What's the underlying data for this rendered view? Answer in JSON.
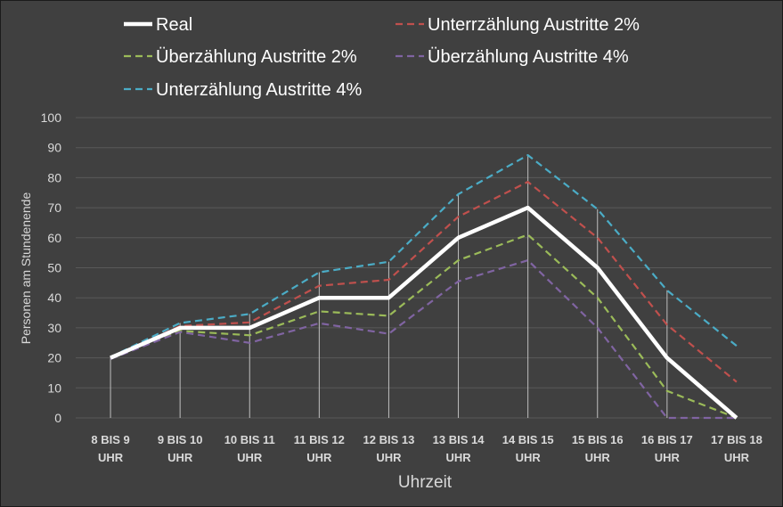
{
  "chart_data": {
    "type": "line",
    "xlabel": "Uhrzeit",
    "ylabel": "Personen am Stundenende",
    "ylim": [
      0,
      100
    ],
    "yticks": [
      0,
      10,
      20,
      30,
      40,
      50,
      60,
      70,
      80,
      90,
      100
    ],
    "grid": true,
    "legend_position": "top",
    "categories": [
      [
        "8 BIS 9",
        "UHR"
      ],
      [
        "9 BIS 10",
        "UHR"
      ],
      [
        "10 BIS 11",
        "UHR"
      ],
      [
        "11 BIS 12",
        "UHR"
      ],
      [
        "12 BIS 13",
        "UHR"
      ],
      [
        "13 BIS 14",
        "UHR"
      ],
      [
        "14 BIS 15",
        "UHR"
      ],
      [
        "15 BIS 16",
        "UHR"
      ],
      [
        "16 BIS 17",
        "UHR"
      ],
      [
        "17 BIS 18",
        "UHR"
      ]
    ],
    "series": [
      {
        "name": "Real",
        "color": "#ffffff",
        "style": "solid",
        "values": [
          20,
          30,
          30,
          40,
          40,
          60,
          70,
          50,
          20,
          0
        ]
      },
      {
        "name": "Unterrzählung Austritte 2%",
        "color": "#c0504d",
        "style": "dashed",
        "values": [
          20,
          30.6,
          31.8,
          44,
          46,
          67,
          78.6,
          60,
          31,
          12
        ]
      },
      {
        "name": "Überzählung Austritte 2%",
        "color": "#9bbb59",
        "style": "dashed",
        "values": [
          20,
          29,
          27.5,
          35.5,
          34,
          52.5,
          61,
          40,
          9,
          0
        ]
      },
      {
        "name": "Überzählung Austritte 4%",
        "color": "#8064a2",
        "style": "dashed",
        "values": [
          19.6,
          28.6,
          25,
          31.5,
          28,
          45.5,
          52.5,
          30,
          0,
          0
        ]
      },
      {
        "name": "Unterzählung Austritte 4%",
        "color": "#4bacc6",
        "style": "dashed",
        "values": [
          20.2,
          31.6,
          34.6,
          48.5,
          52,
          74.5,
          87.5,
          69.5,
          42.5,
          24
        ]
      }
    ]
  }
}
